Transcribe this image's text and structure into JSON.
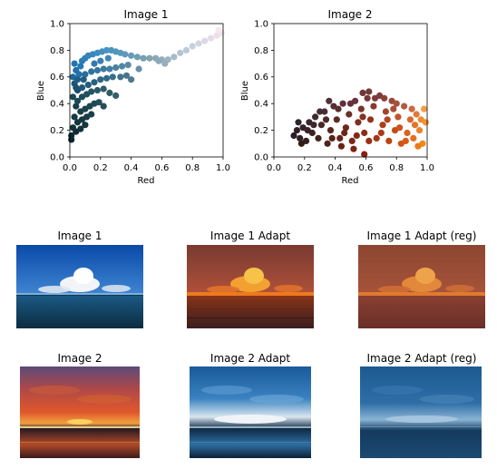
{
  "chart_data": [
    {
      "type": "scatter",
      "title": "Image 1",
      "xlabel": "Red",
      "ylabel": "Blue",
      "xlim": [
        0,
        1
      ],
      "ylim": [
        0,
        1
      ],
      "xticks": [
        "0.0",
        "0.2",
        "0.4",
        "0.6",
        "0.8",
        "1.0"
      ],
      "yticks": [
        "0.0",
        "0.2",
        "0.4",
        "0.6",
        "0.8",
        "1.0"
      ],
      "points": [
        {
          "x": 0.01,
          "y": 0.16,
          "color": "#0f2a30"
        },
        {
          "x": 0.02,
          "y": 0.22,
          "color": "#12323a"
        },
        {
          "x": 0.03,
          "y": 0.3,
          "color": "#153a44"
        },
        {
          "x": 0.04,
          "y": 0.38,
          "color": "#17404c"
        },
        {
          "x": 0.02,
          "y": 0.45,
          "color": "#1a4a58"
        },
        {
          "x": 0.05,
          "y": 0.5,
          "color": "#1b4f60"
        },
        {
          "x": 0.03,
          "y": 0.55,
          "color": "#1c5670"
        },
        {
          "x": 0.02,
          "y": 0.6,
          "color": "#1e6a98"
        },
        {
          "x": 0.04,
          "y": 0.65,
          "color": "#2070a8"
        },
        {
          "x": 0.03,
          "y": 0.7,
          "color": "#2274b0"
        },
        {
          "x": 0.06,
          "y": 0.62,
          "color": "#2172a8"
        },
        {
          "x": 0.07,
          "y": 0.68,
          "color": "#2778b4"
        },
        {
          "x": 0.08,
          "y": 0.72,
          "color": "#2a7cb8"
        },
        {
          "x": 0.1,
          "y": 0.74,
          "color": "#2e80ba"
        },
        {
          "x": 0.12,
          "y": 0.76,
          "color": "#3284bc"
        },
        {
          "x": 0.15,
          "y": 0.77,
          "color": "#3788be"
        },
        {
          "x": 0.18,
          "y": 0.78,
          "color": "#3c8cbf"
        },
        {
          "x": 0.21,
          "y": 0.79,
          "color": "#428fc0"
        },
        {
          "x": 0.24,
          "y": 0.8,
          "color": "#4892c0"
        },
        {
          "x": 0.27,
          "y": 0.8,
          "color": "#4c94bf"
        },
        {
          "x": 0.3,
          "y": 0.79,
          "color": "#5296be"
        },
        {
          "x": 0.33,
          "y": 0.78,
          "color": "#5898bc"
        },
        {
          "x": 0.36,
          "y": 0.77,
          "color": "#5e9aba"
        },
        {
          "x": 0.4,
          "y": 0.76,
          "color": "#669cb6"
        },
        {
          "x": 0.44,
          "y": 0.75,
          "color": "#6e9eb2"
        },
        {
          "x": 0.48,
          "y": 0.74,
          "color": "#76a0ae"
        },
        {
          "x": 0.52,
          "y": 0.74,
          "color": "#80a4b0"
        },
        {
          "x": 0.56,
          "y": 0.74,
          "color": "#8aa8b4"
        },
        {
          "x": 0.6,
          "y": 0.73,
          "color": "#94aebb"
        },
        {
          "x": 0.64,
          "y": 0.73,
          "color": "#9eb4c2"
        },
        {
          "x": 0.68,
          "y": 0.75,
          "color": "#a8bbc9"
        },
        {
          "x": 0.72,
          "y": 0.78,
          "color": "#b4c4d2"
        },
        {
          "x": 0.76,
          "y": 0.8,
          "color": "#bec9d8"
        },
        {
          "x": 0.8,
          "y": 0.83,
          "color": "#c8cfdd"
        },
        {
          "x": 0.84,
          "y": 0.85,
          "color": "#d2d4e2"
        },
        {
          "x": 0.88,
          "y": 0.87,
          "color": "#dcd8e6"
        },
        {
          "x": 0.92,
          "y": 0.89,
          "color": "#e4dce8"
        },
        {
          "x": 0.96,
          "y": 0.91,
          "color": "#eadfea"
        },
        {
          "x": 0.99,
          "y": 0.93,
          "color": "#f0e4ec"
        },
        {
          "x": 0.97,
          "y": 0.95,
          "color": "#f2e8ee"
        },
        {
          "x": 0.1,
          "y": 0.62,
          "color": "#2a6e9c"
        },
        {
          "x": 0.14,
          "y": 0.64,
          "color": "#30729c"
        },
        {
          "x": 0.18,
          "y": 0.65,
          "color": "#36769e"
        },
        {
          "x": 0.22,
          "y": 0.66,
          "color": "#3c7aa0"
        },
        {
          "x": 0.26,
          "y": 0.66,
          "color": "#427ea2"
        },
        {
          "x": 0.3,
          "y": 0.67,
          "color": "#4a82a2"
        },
        {
          "x": 0.34,
          "y": 0.68,
          "color": "#5286a4"
        },
        {
          "x": 0.38,
          "y": 0.69,
          "color": "#5a8aa4"
        },
        {
          "x": 0.08,
          "y": 0.52,
          "color": "#205a78"
        },
        {
          "x": 0.12,
          "y": 0.54,
          "color": "#245e7c"
        },
        {
          "x": 0.16,
          "y": 0.56,
          "color": "#286280"
        },
        {
          "x": 0.2,
          "y": 0.58,
          "color": "#2c6684"
        },
        {
          "x": 0.24,
          "y": 0.59,
          "color": "#326a86"
        },
        {
          "x": 0.28,
          "y": 0.6,
          "color": "#386e88"
        },
        {
          "x": 0.33,
          "y": 0.6,
          "color": "#40728a"
        },
        {
          "x": 0.37,
          "y": 0.61,
          "color": "#46768c"
        },
        {
          "x": 0.05,
          "y": 0.42,
          "color": "#1c4858"
        },
        {
          "x": 0.08,
          "y": 0.45,
          "color": "#1e4c5c"
        },
        {
          "x": 0.11,
          "y": 0.47,
          "color": "#205060"
        },
        {
          "x": 0.14,
          "y": 0.49,
          "color": "#245464"
        },
        {
          "x": 0.18,
          "y": 0.5,
          "color": "#285866"
        },
        {
          "x": 0.22,
          "y": 0.51,
          "color": "#2c5c68"
        },
        {
          "x": 0.26,
          "y": 0.48,
          "color": "#2e5a66"
        },
        {
          "x": 0.3,
          "y": 0.46,
          "color": "#345e6a"
        },
        {
          "x": 0.07,
          "y": 0.34,
          "color": "#183e48"
        },
        {
          "x": 0.1,
          "y": 0.36,
          "color": "#1a424c"
        },
        {
          "x": 0.13,
          "y": 0.38,
          "color": "#1c4650"
        },
        {
          "x": 0.16,
          "y": 0.4,
          "color": "#1e4a54"
        },
        {
          "x": 0.19,
          "y": 0.41,
          "color": "#224e58"
        },
        {
          "x": 0.22,
          "y": 0.38,
          "color": "#244e58"
        },
        {
          "x": 0.05,
          "y": 0.26,
          "color": "#14343c"
        },
        {
          "x": 0.08,
          "y": 0.28,
          "color": "#163840"
        },
        {
          "x": 0.11,
          "y": 0.3,
          "color": "#183c44"
        },
        {
          "x": 0.14,
          "y": 0.32,
          "color": "#1a4048"
        },
        {
          "x": 0.04,
          "y": 0.19,
          "color": "#122e36"
        },
        {
          "x": 0.07,
          "y": 0.21,
          "color": "#143238"
        },
        {
          "x": 0.1,
          "y": 0.24,
          "color": "#16363c"
        },
        {
          "x": 0.01,
          "y": 0.13,
          "color": "#0e262c"
        },
        {
          "x": 0.45,
          "y": 0.66,
          "color": "#6a8ea8"
        },
        {
          "x": 0.4,
          "y": 0.58,
          "color": "#4e7a90"
        },
        {
          "x": 0.05,
          "y": 0.58,
          "color": "#1e5c88"
        },
        {
          "x": 0.04,
          "y": 0.52,
          "color": "#1b5070"
        },
        {
          "x": 0.09,
          "y": 0.58,
          "color": "#225e84"
        },
        {
          "x": 0.16,
          "y": 0.7,
          "color": "#347ab0"
        },
        {
          "x": 0.2,
          "y": 0.72,
          "color": "#3a7eb2"
        },
        {
          "x": 0.58,
          "y": 0.72,
          "color": "#8ea8b6"
        },
        {
          "x": 0.62,
          "y": 0.7,
          "color": "#98aebe"
        },
        {
          "x": 0.25,
          "y": 0.74,
          "color": "#4486b8"
        }
      ]
    },
    {
      "type": "scatter",
      "title": "Image 2",
      "xlabel": "Red",
      "ylabel": "Blue",
      "xlim": [
        0,
        1
      ],
      "ylim": [
        0,
        1
      ],
      "xticks": [
        "0.0",
        "0.2",
        "0.4",
        "0.6",
        "0.8",
        "1.0"
      ],
      "yticks": [
        "0.0",
        "0.2",
        "0.4",
        "0.6",
        "0.8",
        "1.0"
      ],
      "points": [
        {
          "x": 0.13,
          "y": 0.16,
          "color": "#2a1e24"
        },
        {
          "x": 0.15,
          "y": 0.2,
          "color": "#2e2028"
        },
        {
          "x": 0.17,
          "y": 0.14,
          "color": "#301e20"
        },
        {
          "x": 0.19,
          "y": 0.22,
          "color": "#34222a"
        },
        {
          "x": 0.21,
          "y": 0.12,
          "color": "#361e1c"
        },
        {
          "x": 0.23,
          "y": 0.26,
          "color": "#3a262e"
        },
        {
          "x": 0.25,
          "y": 0.18,
          "color": "#3c2222"
        },
        {
          "x": 0.27,
          "y": 0.3,
          "color": "#402a32"
        },
        {
          "x": 0.29,
          "y": 0.14,
          "color": "#44221c"
        },
        {
          "x": 0.31,
          "y": 0.24,
          "color": "#482828"
        },
        {
          "x": 0.33,
          "y": 0.34,
          "color": "#4a2c34"
        },
        {
          "x": 0.35,
          "y": 0.1,
          "color": "#50201a"
        },
        {
          "x": 0.37,
          "y": 0.2,
          "color": "#54261e"
        },
        {
          "x": 0.39,
          "y": 0.38,
          "color": "#542e36"
        },
        {
          "x": 0.41,
          "y": 0.28,
          "color": "#5c2a24"
        },
        {
          "x": 0.43,
          "y": 0.14,
          "color": "#64241a"
        },
        {
          "x": 0.45,
          "y": 0.4,
          "color": "#5e3038"
        },
        {
          "x": 0.47,
          "y": 0.22,
          "color": "#6a2a1c"
        },
        {
          "x": 0.49,
          "y": 0.32,
          "color": "#6c2e26"
        },
        {
          "x": 0.51,
          "y": 0.12,
          "color": "#7a2818"
        },
        {
          "x": 0.53,
          "y": 0.42,
          "color": "#683236"
        },
        {
          "x": 0.55,
          "y": 0.26,
          "color": "#7e2e1c"
        },
        {
          "x": 0.57,
          "y": 0.36,
          "color": "#7a3228"
        },
        {
          "x": 0.59,
          "y": 0.02,
          "color": "#8a1e12"
        },
        {
          "x": 0.59,
          "y": 0.18,
          "color": "#8c2e16"
        },
        {
          "x": 0.61,
          "y": 0.44,
          "color": "#74363a"
        },
        {
          "x": 0.63,
          "y": 0.28,
          "color": "#923418"
        },
        {
          "x": 0.65,
          "y": 0.38,
          "color": "#8a3a2c"
        },
        {
          "x": 0.67,
          "y": 0.14,
          "color": "#a23614"
        },
        {
          "x": 0.69,
          "y": 0.46,
          "color": "#803a3a"
        },
        {
          "x": 0.71,
          "y": 0.24,
          "color": "#ac3e18"
        },
        {
          "x": 0.73,
          "y": 0.34,
          "color": "#a4442a"
        },
        {
          "x": 0.75,
          "y": 0.12,
          "color": "#ba4414"
        },
        {
          "x": 0.77,
          "y": 0.42,
          "color": "#9a4838"
        },
        {
          "x": 0.79,
          "y": 0.2,
          "color": "#c44c18"
        },
        {
          "x": 0.81,
          "y": 0.3,
          "color": "#c0542c"
        },
        {
          "x": 0.83,
          "y": 0.1,
          "color": "#d05616"
        },
        {
          "x": 0.85,
          "y": 0.38,
          "color": "#b45a3c"
        },
        {
          "x": 0.87,
          "y": 0.18,
          "color": "#d8621c"
        },
        {
          "x": 0.89,
          "y": 0.28,
          "color": "#d86a30"
        },
        {
          "x": 0.91,
          "y": 0.14,
          "color": "#e47020"
        },
        {
          "x": 0.93,
          "y": 0.32,
          "color": "#e07a3a"
        },
        {
          "x": 0.95,
          "y": 0.2,
          "color": "#ee8228"
        },
        {
          "x": 0.97,
          "y": 0.1,
          "color": "#f2881c"
        },
        {
          "x": 0.99,
          "y": 0.26,
          "color": "#f49434"
        },
        {
          "x": 0.98,
          "y": 0.36,
          "color": "#f09c48"
        },
        {
          "x": 0.96,
          "y": 0.28,
          "color": "#ee8a30"
        },
        {
          "x": 0.94,
          "y": 0.08,
          "color": "#ec7a18"
        },
        {
          "x": 0.18,
          "y": 0.1,
          "color": "#321c1a"
        },
        {
          "x": 0.22,
          "y": 0.2,
          "color": "#38222a"
        },
        {
          "x": 0.26,
          "y": 0.24,
          "color": "#3e262c"
        },
        {
          "x": 0.3,
          "y": 0.34,
          "color": "#442c34"
        },
        {
          "x": 0.34,
          "y": 0.28,
          "color": "#4a2a2c"
        },
        {
          "x": 0.38,
          "y": 0.14,
          "color": "#5a2218"
        },
        {
          "x": 0.42,
          "y": 0.36,
          "color": "#582e34"
        },
        {
          "x": 0.46,
          "y": 0.18,
          "color": "#6c2618"
        },
        {
          "x": 0.5,
          "y": 0.4,
          "color": "#64303a"
        },
        {
          "x": 0.54,
          "y": 0.16,
          "color": "#802a16"
        },
        {
          "x": 0.58,
          "y": 0.3,
          "color": "#843226"
        },
        {
          "x": 0.62,
          "y": 0.12,
          "color": "#963014"
        },
        {
          "x": 0.66,
          "y": 0.44,
          "color": "#7c383a"
        },
        {
          "x": 0.7,
          "y": 0.18,
          "color": "#aa3a16"
        },
        {
          "x": 0.74,
          "y": 0.28,
          "color": "#b24222"
        },
        {
          "x": 0.78,
          "y": 0.36,
          "color": "#ac4c34"
        },
        {
          "x": 0.82,
          "y": 0.22,
          "color": "#cc541e"
        },
        {
          "x": 0.86,
          "y": 0.12,
          "color": "#d85c16"
        },
        {
          "x": 0.9,
          "y": 0.36,
          "color": "#cc6a40"
        },
        {
          "x": 0.92,
          "y": 0.24,
          "color": "#e27428"
        },
        {
          "x": 0.58,
          "y": 0.48,
          "color": "#6e3638"
        },
        {
          "x": 0.62,
          "y": 0.49,
          "color": "#723838"
        },
        {
          "x": 0.72,
          "y": 0.44,
          "color": "#8c4038"
        },
        {
          "x": 0.8,
          "y": 0.4,
          "color": "#a65040"
        },
        {
          "x": 0.44,
          "y": 0.08,
          "color": "#6a2214"
        },
        {
          "x": 0.52,
          "y": 0.06,
          "color": "#7e2414"
        },
        {
          "x": 0.36,
          "y": 0.42,
          "color": "#503036"
        },
        {
          "x": 0.16,
          "y": 0.26,
          "color": "#30242c"
        }
      ]
    }
  ],
  "image_panels": [
    {
      "title": "Image 1",
      "scene": "ocean-blue"
    },
    {
      "title": "Image 1 Adapt",
      "scene": "ocean-adapt"
    },
    {
      "title": "Image 1 Adapt (reg)",
      "scene": "ocean-adapt-reg"
    },
    {
      "title": "Image 2",
      "scene": "sunset"
    },
    {
      "title": "Image 2 Adapt",
      "scene": "sunset-adapt"
    },
    {
      "title": "Image 2 Adapt (reg)",
      "scene": "sunset-adapt-reg"
    }
  ]
}
